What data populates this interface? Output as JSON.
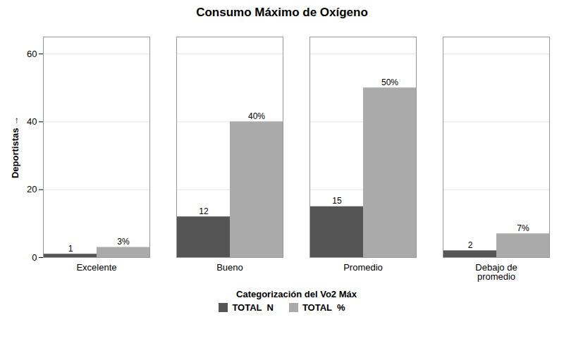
{
  "chart_data": {
    "type": "bar",
    "title": "Consumo Máximo de Oxígeno",
    "xlabel": "Categorización del Vo2 Máx",
    "ylabel": "Deportistas",
    "categories": [
      "Excelente",
      "Bueno",
      "Promedio",
      "Debajo de\npromedio"
    ],
    "series": [
      {
        "name": "TOTAL  N",
        "color": "#555555",
        "values": [
          1,
          12,
          15,
          2
        ]
      },
      {
        "name": "TOTAL  %",
        "color": "#aaaaaa",
        "values": [
          3,
          40,
          50,
          7
        ],
        "value_labels": [
          "3%",
          "40%",
          "50%",
          "7%"
        ]
      }
    ],
    "ylim": [
      0,
      65
    ],
    "yticks": [
      0,
      20,
      40,
      60
    ],
    "grid": true,
    "legend": "bottom",
    "data_labels": true
  }
}
